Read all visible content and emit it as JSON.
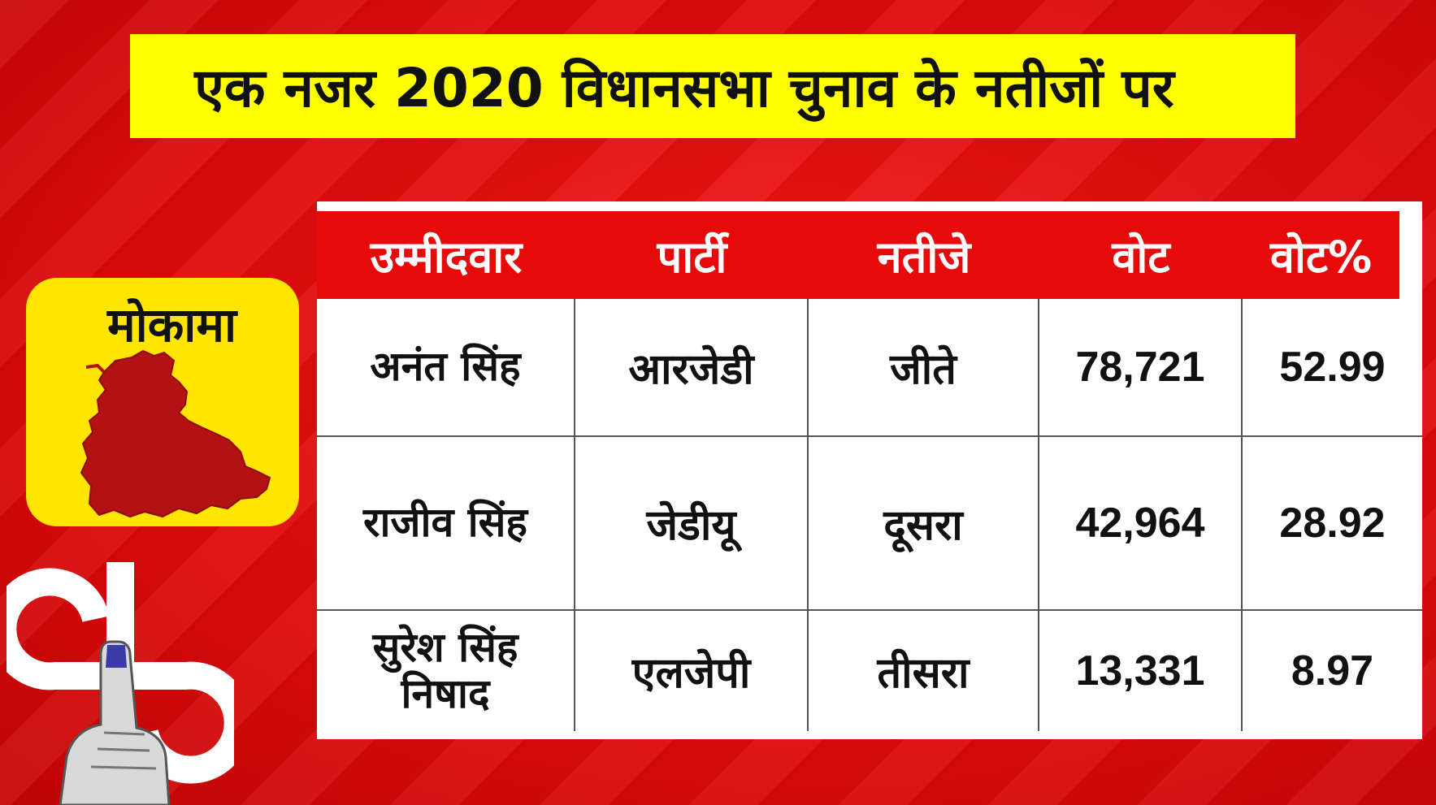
{
  "title": "एक नजर 2020 विधानसभा चुनाव के नतीजों पर",
  "constituency": "मोकामा",
  "table": {
    "headers": [
      "उम्मीदवार",
      "पार्टी",
      "नतीजे",
      "वोट",
      "वोट%"
    ],
    "rows": [
      [
        "अनंत सिंह",
        "आरजेडी",
        "जीते",
        "78,721",
        "52.99"
      ],
      [
        "राजीव सिंह",
        "जेडीयू",
        "दूसरा",
        "42,964",
        "28.92"
      ],
      [
        "सुरेश सिंह निषाद",
        "एलजेपी",
        "तीसरा",
        "13,331",
        "8.97"
      ]
    ]
  },
  "colors": {
    "background": "#e00b0b",
    "title_bar": "#ffff00",
    "header_row": "#e60a0a",
    "badge": "#ffe600",
    "map_fill": "#b31212"
  },
  "icons": [
    "constituency-map-icon",
    "election-symbol-icon",
    "inked-finger-icon"
  ]
}
